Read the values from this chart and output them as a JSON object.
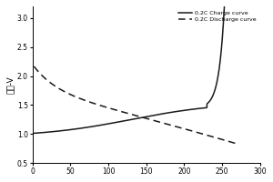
{
  "title": "",
  "ylabel": "电压-V",
  "xlabel": "",
  "xlim": [
    0,
    300
  ],
  "ylim": [
    0.5,
    3.2
  ],
  "yticks": [
    0.5,
    1.0,
    1.5,
    2.0,
    2.5,
    3.0
  ],
  "xticks": [
    0,
    50,
    100,
    150,
    200,
    250,
    300
  ],
  "legend_entries": [
    "0.2C Charge curve",
    "0.2C Discharge curve"
  ],
  "background_color": "#ffffff",
  "charge_color": "#1a1a1a",
  "discharge_color": "#1a1a1a",
  "figsize": [
    3.0,
    2.0
  ],
  "dpi": 100
}
